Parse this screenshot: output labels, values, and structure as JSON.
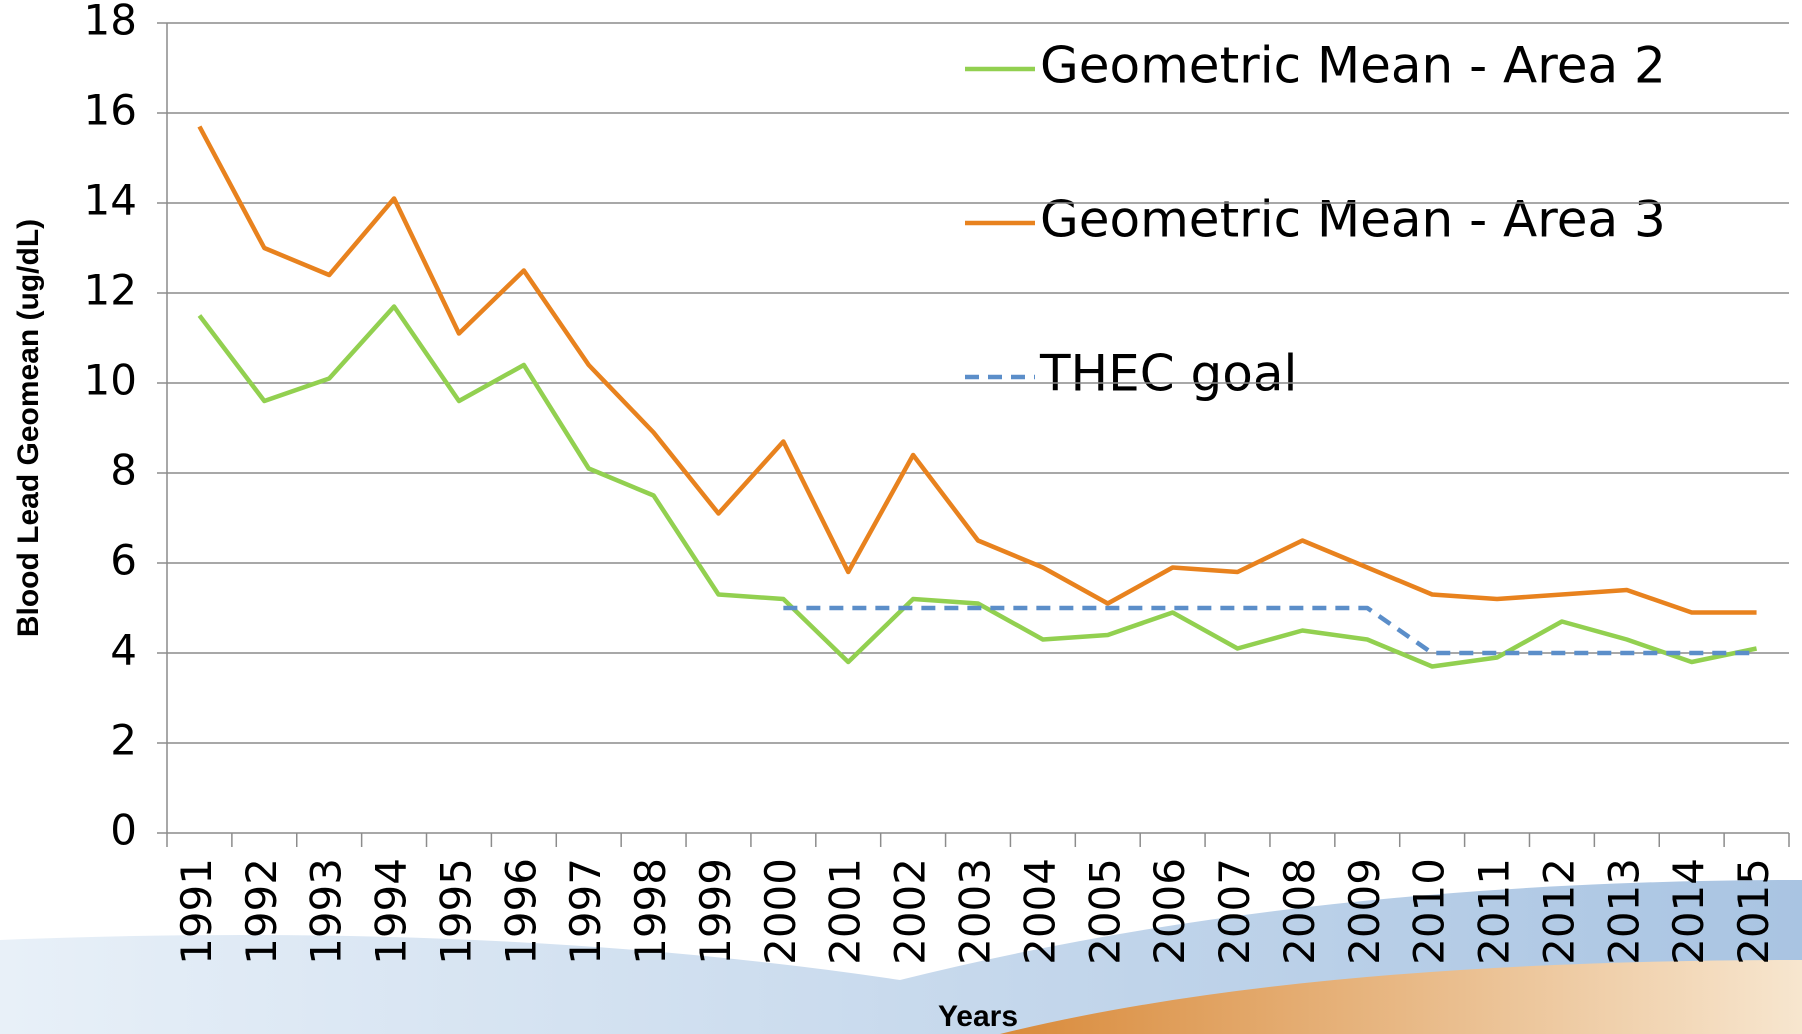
{
  "chart_data": {
    "type": "line",
    "y_label": "Blood Lead Geomean (ug/dL)",
    "x_label": "Years",
    "categories": [
      "1991",
      "1992",
      "1993",
      "1994",
      "1995",
      "1996",
      "1997",
      "1998",
      "1999",
      "2000",
      "2001",
      "2002",
      "2003",
      "2004",
      "2005",
      "2006",
      "2007",
      "2008",
      "2009",
      "2010",
      "2011",
      "2012",
      "2013",
      "2014",
      "2015"
    ],
    "series": [
      {
        "name": "Geometric Mean - Area 2",
        "color": "#92d050",
        "dash": false,
        "values": [
          11.5,
          9.6,
          10.1,
          11.7,
          9.6,
          10.4,
          8.1,
          7.5,
          5.3,
          5.2,
          3.8,
          5.2,
          5.1,
          4.3,
          4.4,
          4.9,
          4.1,
          4.5,
          4.3,
          3.7,
          3.9,
          4.7,
          4.3,
          3.8,
          4.1
        ]
      },
      {
        "name": "Geometric Mean - Area 3",
        "color": "#e8821e",
        "dash": false,
        "values": [
          15.7,
          13.0,
          12.4,
          14.1,
          11.1,
          12.5,
          10.4,
          8.9,
          7.1,
          8.7,
          5.8,
          8.4,
          6.5,
          5.9,
          5.1,
          5.9,
          5.8,
          6.5,
          5.9,
          5.3,
          5.2,
          5.3,
          5.4,
          4.9,
          4.9
        ]
      },
      {
        "name": "THEC goal",
        "color": "#5b8ec9",
        "dash": true,
        "values": [
          null,
          null,
          null,
          null,
          null,
          null,
          null,
          null,
          null,
          5,
          5,
          5,
          5,
          5,
          5,
          5,
          5,
          5,
          5,
          4,
          4,
          4,
          4,
          4,
          4
        ]
      }
    ],
    "ylim": [
      0,
      18
    ],
    "yticks": [
      0,
      2,
      4,
      6,
      8,
      10,
      12,
      14,
      16,
      18
    ],
    "grid": true,
    "legend": "top-right"
  }
}
